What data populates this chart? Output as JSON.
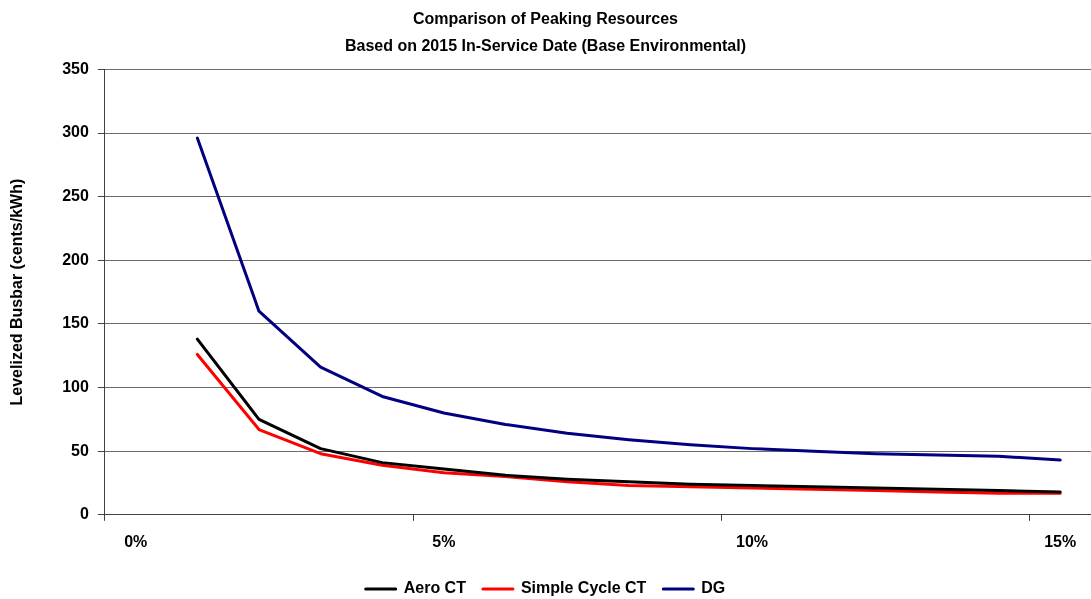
{
  "chart_data": {
    "type": "line",
    "title": "Comparison of Peaking Resources",
    "subtitle": "Based on 2015 In-Service Date (Base Environmental)",
    "ylabel": "Levelized Busbar (cents/kWh)",
    "categories": [
      "0%",
      null,
      null,
      null,
      null,
      "5%",
      null,
      null,
      null,
      null,
      "10%",
      null,
      null,
      null,
      null,
      "15%"
    ],
    "series": [
      {
        "name": "Aero CT",
        "color": "#000000",
        "values": [
          null,
          138,
          75,
          52,
          41,
          36,
          31,
          28,
          26,
          24,
          23,
          22,
          21,
          20,
          19,
          18
        ]
      },
      {
        "name": "Simple Cycle CT",
        "color": "#ff0000",
        "values": [
          null,
          126,
          67,
          48,
          39,
          33,
          30,
          26,
          23,
          22,
          21,
          20,
          19,
          18,
          17,
          17
        ]
      },
      {
        "name": "DG",
        "color": "#000080",
        "values": [
          null,
          296,
          160,
          116,
          93,
          80,
          71,
          64,
          59,
          55,
          52,
          50,
          48,
          47,
          46,
          43
        ]
      }
    ],
    "ylim": [
      0,
      350
    ],
    "yticks": [
      0,
      50,
      100,
      150,
      200,
      250,
      300,
      350
    ],
    "grid": "y",
    "legend": "bottom"
  }
}
